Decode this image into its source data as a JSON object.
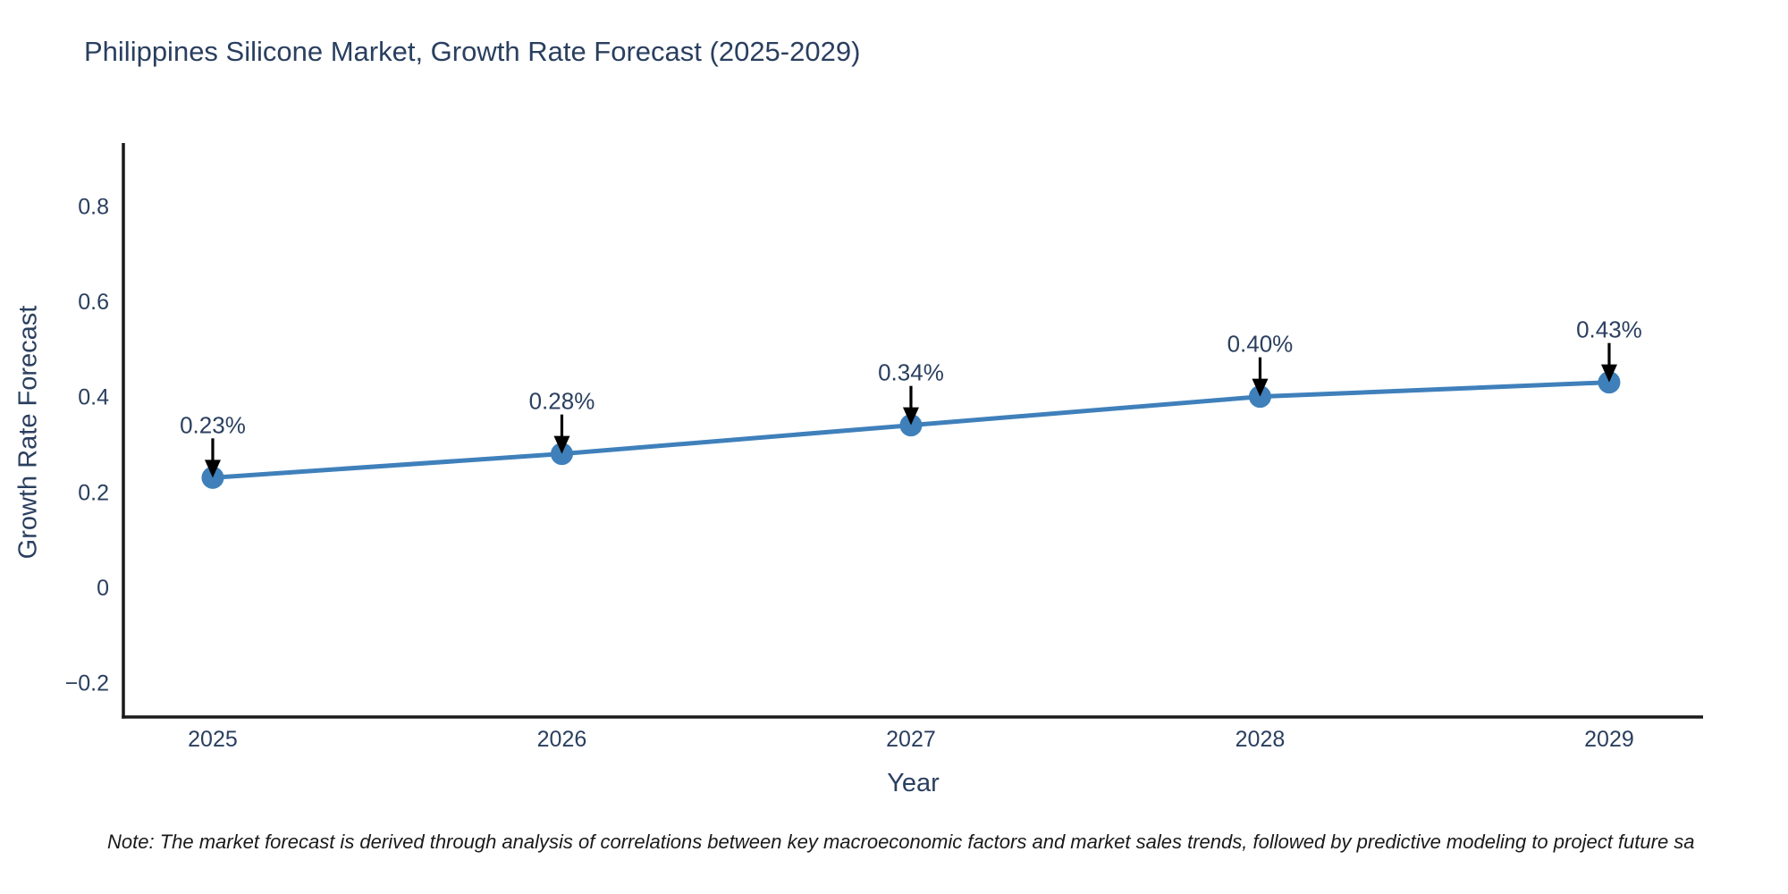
{
  "page": {
    "background": "#ffffff"
  },
  "chart_data": {
    "type": "line",
    "title": "Philippines Silicone Market, Growth Rate Forecast (2025-2029)",
    "xlabel": "Year",
    "ylabel": "Growth Rate Forecast",
    "x": [
      2025,
      2026,
      2027,
      2028,
      2029
    ],
    "series": [
      {
        "name": "Growth Rate Forecast",
        "values": [
          0.23,
          0.28,
          0.34,
          0.4,
          0.43
        ],
        "point_labels": [
          "0.23%",
          "0.28%",
          "0.34%",
          "0.40%",
          "0.43%"
        ],
        "color": "#3f80bb"
      }
    ],
    "xticks": [
      2025,
      2026,
      2027,
      2028,
      2029
    ],
    "xtick_labels": [
      "2025",
      "2026",
      "2027",
      "2028",
      "2029"
    ],
    "yticks": [
      -0.2,
      0,
      0.2,
      0.4,
      0.6,
      0.8
    ],
    "ytick_labels": [
      "−0.2",
      "0",
      "0.2",
      "0.4",
      "0.6",
      "0.8"
    ],
    "xlim": [
      2024.744,
      2029.269
    ],
    "ylim": [
      -0.272,
      0.932
    ],
    "grid": false,
    "legend": "none",
    "marker_radius": 12.5,
    "line_width": 5,
    "axis_line_color": "#1a1a1a",
    "text_color": "#2a3f5f",
    "annotation_arrow_color": "#000000"
  },
  "note": {
    "text": "Note: The market forecast is derived through analysis of correlations between key macroeconomic factors and market sales trends, followed by predictive modeling to project future sa"
  }
}
